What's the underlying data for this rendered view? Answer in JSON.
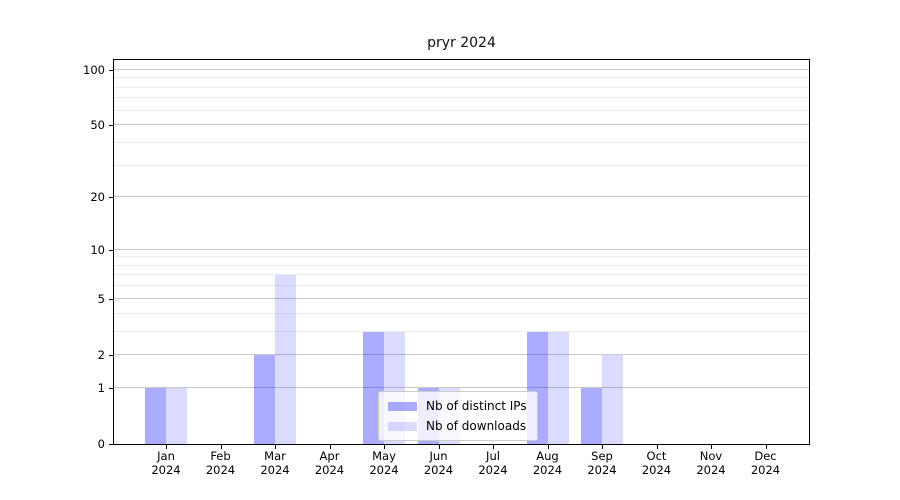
{
  "chart_data": {
    "type": "bar",
    "title": "pryr 2024",
    "categories": [
      {
        "month": "Jan",
        "year": "2024"
      },
      {
        "month": "Feb",
        "year": "2024"
      },
      {
        "month": "Mar",
        "year": "2024"
      },
      {
        "month": "Apr",
        "year": "2024"
      },
      {
        "month": "May",
        "year": "2024"
      },
      {
        "month": "Jun",
        "year": "2024"
      },
      {
        "month": "Jul",
        "year": "2024"
      },
      {
        "month": "Aug",
        "year": "2024"
      },
      {
        "month": "Sep",
        "year": "2024"
      },
      {
        "month": "Oct",
        "year": "2024"
      },
      {
        "month": "Nov",
        "year": "2024"
      },
      {
        "month": "Dec",
        "year": "2024"
      }
    ],
    "series": [
      {
        "name": "Nb of distinct IPs",
        "color": "rgba(0,0,255,0.33)",
        "values": [
          1,
          0,
          2,
          0,
          3,
          1,
          0,
          3,
          1,
          0,
          0,
          0
        ]
      },
      {
        "name": "Nb of downloads",
        "color": "rgba(0,0,255,0.14)",
        "values": [
          1,
          0,
          7,
          0,
          3,
          1,
          0,
          3,
          2,
          0,
          0,
          0
        ]
      }
    ],
    "y_axis": {
      "scale": "log1p",
      "tick_labels": [
        0,
        1,
        2,
        5,
        10,
        20,
        50,
        100
      ],
      "minor_gridlines": [
        3,
        4,
        6,
        7,
        8,
        9,
        30,
        40,
        60,
        70,
        80,
        90
      ],
      "max": 113
    },
    "legend": {
      "position": "lower-center"
    },
    "grid": true,
    "colors": {
      "major_grid": "#c9c9c9",
      "minor_grid": "#ececec",
      "axis": "#000000",
      "legend_border": "#cccccc",
      "legend_bg": "rgba(255,255,255,0.8)"
    }
  }
}
